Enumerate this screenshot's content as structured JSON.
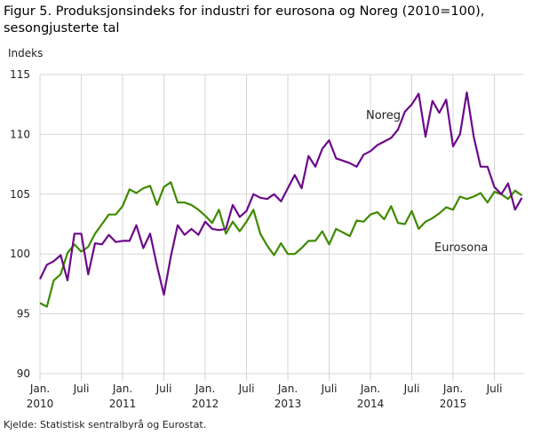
{
  "chart_data": {
    "type": "line",
    "title": "Figur 5. Produksjonsindeks for industri for eurosona og Noreg (2010=100), sesongjusterte tal",
    "ylabel": "Indeks",
    "xlabel": "",
    "ylim": [
      90,
      115
    ],
    "yticks": [
      90,
      95,
      100,
      105,
      110,
      115
    ],
    "x_start": "2010-01",
    "x_end": "2015-11",
    "xticks": [
      {
        "month": 0,
        "label": "Jan.",
        "year": "2010"
      },
      {
        "month": 6,
        "label": "Juli",
        "year": ""
      },
      {
        "month": 12,
        "label": "Jan.",
        "year": "2011"
      },
      {
        "month": 18,
        "label": "Juli",
        "year": ""
      },
      {
        "month": 24,
        "label": "Jan.",
        "year": "2012"
      },
      {
        "month": 30,
        "label": "Juli",
        "year": ""
      },
      {
        "month": 36,
        "label": "Jan.",
        "year": "2013"
      },
      {
        "month": 42,
        "label": "Juli",
        "year": ""
      },
      {
        "month": 48,
        "label": "Jan.",
        "year": "2014"
      },
      {
        "month": 54,
        "label": "Juli",
        "year": ""
      },
      {
        "month": 60,
        "label": "Jan.",
        "year": "2015"
      },
      {
        "month": 66,
        "label": "Juli",
        "year": ""
      }
    ],
    "grid": true,
    "series": [
      {
        "name": "Noreg",
        "color": "#6b0a8a",
        "values": [
          97.9,
          99.1,
          99.4,
          99.9,
          97.8,
          101.7,
          101.7,
          98.3,
          100.9,
          100.8,
          101.6,
          101.0,
          101.1,
          101.1,
          102.4,
          100.5,
          101.7,
          99.0,
          96.6,
          99.8,
          102.4,
          101.6,
          102.1,
          101.6,
          102.7,
          102.1,
          102.0,
          102.1,
          104.1,
          103.1,
          103.6,
          105.0,
          104.7,
          104.6,
          105.0,
          104.4,
          105.5,
          106.6,
          105.5,
          108.2,
          107.3,
          108.8,
          109.5,
          108.0,
          107.8,
          107.6,
          107.3,
          108.3,
          108.6,
          109.1,
          109.4,
          109.7,
          110.4,
          111.9,
          112.5,
          113.4,
          109.8,
          112.8,
          111.8,
          112.9,
          109.0,
          110.0,
          113.5,
          109.8,
          107.3,
          107.3,
          105.6,
          105.0,
          105.9,
          103.7,
          104.7
        ]
      },
      {
        "name": "Eurosona",
        "color": "#3f8a00",
        "values": [
          95.9,
          95.6,
          97.8,
          98.3,
          100.1,
          100.8,
          100.2,
          100.6,
          101.7,
          102.5,
          103.3,
          103.3,
          104.0,
          105.4,
          105.1,
          105.5,
          105.7,
          104.1,
          105.6,
          106.0,
          104.3,
          104.3,
          104.1,
          103.7,
          103.2,
          102.6,
          103.7,
          101.7,
          102.7,
          101.9,
          102.7,
          103.7,
          101.7,
          100.7,
          99.9,
          100.9,
          100.0,
          100.0,
          100.5,
          101.1,
          101.1,
          101.9,
          100.8,
          102.1,
          101.8,
          101.5,
          102.8,
          102.7,
          103.3,
          103.5,
          102.9,
          104.0,
          102.6,
          102.5,
          103.6,
          102.1,
          102.7,
          103.0,
          103.4,
          103.9,
          103.7,
          104.8,
          104.6,
          104.8,
          105.1,
          104.3,
          105.2,
          105.0,
          104.6,
          105.3,
          104.9
        ]
      }
    ],
    "annotations": [
      "Noreg",
      "Eurosona"
    ],
    "source": "Kjelde: Statistisk sentralbyrå og Eurostat."
  }
}
